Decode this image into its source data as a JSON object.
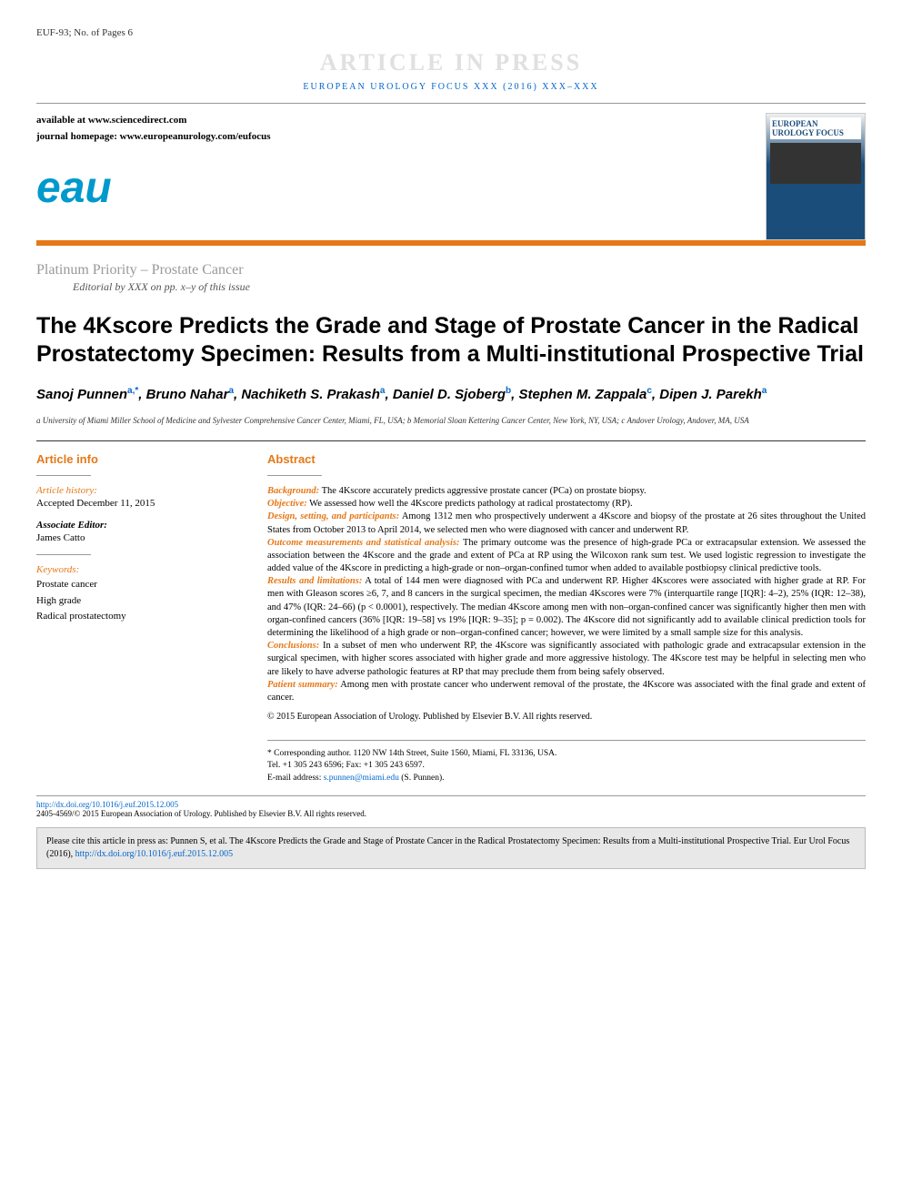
{
  "header": {
    "doc_id": "EUF-93; No. of Pages 6",
    "watermark": "ARTICLE IN PRESS",
    "journal_ref": "EUROPEAN UROLOGY FOCUS XXX (2016) XXX–XXX",
    "available_at": "available at www.sciencedirect.com",
    "homepage": "journal homepage: www.europeanurology.com/eufocus",
    "logo_text": "eau",
    "cover_title": "EUROPEAN UROLOGY FOCUS"
  },
  "colors": {
    "orange": "#e67817",
    "blue": "#0066cc",
    "logo_blue": "#0099cc",
    "grey": "#999999",
    "cite_bg": "#e8e8e8"
  },
  "section": {
    "label": "Platinum Priority – Prostate Cancer",
    "editorial": "Editorial by XXX on pp. x–y of this issue"
  },
  "title": "The 4Kscore Predicts the Grade and Stage of Prostate Cancer in the Radical Prostatectomy Specimen: Results from a Multi-institutional Prospective Trial",
  "authors_html": "Sanoj Punnen",
  "authors": [
    {
      "name": "Sanoj Punnen",
      "aff": "a,*"
    },
    {
      "name": "Bruno Nahar",
      "aff": "a"
    },
    {
      "name": "Nachiketh S. Prakash",
      "aff": "a"
    },
    {
      "name": "Daniel D. Sjoberg",
      "aff": "b"
    },
    {
      "name": "Stephen M. Zappala",
      "aff": "c"
    },
    {
      "name": "Dipen J. Parekh",
      "aff": "a"
    }
  ],
  "affiliations": "a University of Miami Miller School of Medicine and Sylvester Comprehensive Cancer Center, Miami, FL, USA; b Memorial Sloan Kettering Cancer Center, New York, NY, USA; c Andover Urology, Andover, MA, USA",
  "article_info": {
    "heading": "Article info",
    "history_label": "Article history:",
    "history_text": "Accepted December 11, 2015",
    "editor_label": "Associate Editor:",
    "editor_name": "James Catto",
    "keywords_label": "Keywords:",
    "keywords": [
      "Prostate cancer",
      "High grade",
      "Radical prostatectomy"
    ]
  },
  "abstract": {
    "heading": "Abstract",
    "sections": [
      {
        "label": "Background:",
        "text": "The 4Kscore accurately predicts aggressive prostate cancer (PCa) on prostate biopsy."
      },
      {
        "label": "Objective:",
        "text": "We assessed how well the 4Kscore predicts pathology at radical prostatectomy (RP)."
      },
      {
        "label": "Design, setting, and participants:",
        "text": "Among 1312 men who prospectively underwent a 4Kscore and biopsy of the prostate at 26 sites throughout the United States from October 2013 to April 2014, we selected men who were diagnosed with cancer and underwent RP."
      },
      {
        "label": "Outcome measurements and statistical analysis:",
        "text": "The primary outcome was the presence of high-grade PCa or extracapsular extension. We assessed the association between the 4Kscore and the grade and extent of PCa at RP using the Wilcoxon rank sum test. We used logistic regression to investigate the added value of the 4Kscore in predicting a high-grade or non–organ-confined tumor when added to available postbiopsy clinical predictive tools."
      },
      {
        "label": "Results and limitations:",
        "text": "A total of 144 men were diagnosed with PCa and underwent RP. Higher 4Kscores were associated with higher grade at RP. For men with Gleason scores ≥6, 7, and 8 cancers in the surgical specimen, the median 4Kscores were 7% (interquartile range [IQR]: 4–2), 25% (IQR: 12–38), and 47% (IQR: 24–66) (p < 0.0001), respectively. The median 4Kscore among men with non–organ-confined cancer was significantly higher then men with organ-confined cancers (36% [IQR: 19–58] vs 19% [IQR: 9–35]; p = 0.002). The 4Kscore did not significantly add to available clinical prediction tools for determining the likelihood of a high grade or non–organ-confined cancer; however, we were limited by a small sample size for this analysis."
      },
      {
        "label": "Conclusions:",
        "text": "In a subset of men who underwent RP, the 4Kscore was significantly associated with pathologic grade and extracapsular extension in the surgical specimen, with higher scores associated with higher grade and more aggressive histology. The 4Kscore test may be helpful in selecting men who are likely to have adverse pathologic features at RP that may preclude them from being safely observed."
      },
      {
        "label": "Patient summary:",
        "text": "Among men with prostate cancer who underwent removal of the prostate, the 4Kscore was associated with the final grade and extent of cancer."
      }
    ],
    "copyright": "© 2015 European Association of Urology. Published by Elsevier B.V. All rights reserved."
  },
  "corresponding": {
    "address": "* Corresponding author. 1120 NW 14th Street, Suite 1560, Miami, FL 33136, USA.",
    "tel": "Tel. +1 305 243 6596; Fax: +1 305 243 6597.",
    "email_label": "E-mail address: ",
    "email": "s.punnen@miami.edu",
    "email_name": " (S. Punnen)."
  },
  "footer": {
    "doi": "http://dx.doi.org/10.1016/j.euf.2015.12.005",
    "issn_line": "2405-4569/© 2015 European Association of Urology. Published by Elsevier B.V. All rights reserved."
  },
  "citation": {
    "text": "Please cite this article in press as: Punnen S, et al. The 4Kscore Predicts the Grade and Stage of Prostate Cancer in the Radical Prostatectomy Specimen: Results from a Multi-institutional Prospective Trial. Eur Urol Focus (2016), ",
    "link": "http://dx.doi.org/10.1016/j.euf.2015.12.005"
  }
}
